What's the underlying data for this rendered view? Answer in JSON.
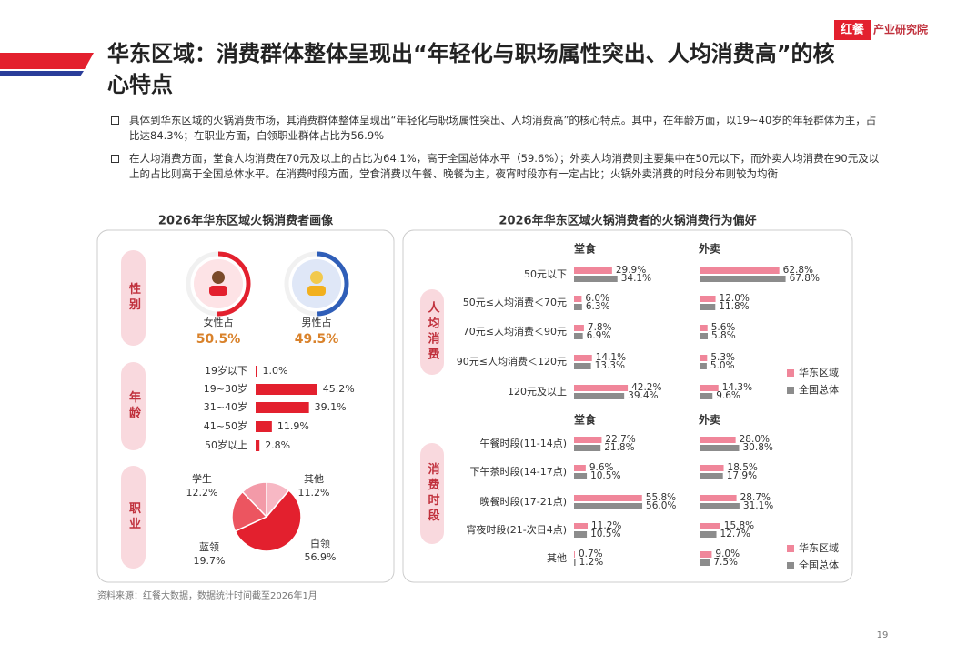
{
  "logo": {
    "brand": "红餐",
    "name": "产业研究院"
  },
  "header": {
    "title": "华东区域：消费群体整体呈现出“年轻化与职场属性突出、人均消费高”的核心特点"
  },
  "bullets": [
    "具体到华东区域的火锅消费市场，其消费群体整体呈现出“年轻化与职场属性突出、人均消费高”的核心特点。其中，在年龄方面，以19~40岁的年轻群体为主，占比达84.3%；在职业方面，白领职业群体占比为56.9%",
    "在人均消费方面，堂食人均消费在70元及以上的占比为64.1%，高于全国总体水平（59.6%）；外卖人均消费则主要集中在50元以下，而外卖人均消费在90元及以上的占比则高于全国总体水平。在消费时段方面，堂食消费以午餐、晚餐为主，夜宵时段亦有一定占比；火锅外卖消费的时段分布则较为均衡"
  ],
  "panels": [
    {
      "title": "2026年华东区域火锅消费者画像"
    },
    {
      "title": "2026年华东区域火锅消费者的火锅消费行为偏好"
    }
  ],
  "chart_data": [
    {
      "type": "ring",
      "label": "性别",
      "categories": [
        "女性占",
        "男性占"
      ],
      "values": [
        50.5,
        49.5
      ],
      "value_labels": [
        "50.5%",
        "49.5%"
      ],
      "colors": [
        "#e3202e",
        "#2f5eb8"
      ]
    },
    {
      "type": "hbar",
      "label": "年龄",
      "categories": [
        "19岁以下",
        "19~30岁",
        "31~40岁",
        "41~50岁",
        "50岁以上"
      ],
      "values": [
        1.0,
        45.2,
        39.1,
        11.9,
        2.8
      ],
      "value_labels": [
        "1.0%",
        "45.2%",
        "39.1%",
        "11.9%",
        "2.8%"
      ],
      "color": "#e3202e"
    },
    {
      "type": "pie",
      "label": "职业",
      "categories": [
        "其他",
        "白领",
        "蓝领",
        "学生"
      ],
      "values": [
        11.2,
        56.9,
        19.7,
        12.2
      ],
      "value_labels": [
        "11.2%",
        "56.9%",
        "19.7%",
        "12.2%"
      ],
      "colors": [
        "#f7b8c4",
        "#e3202e",
        "#ec5560",
        "#f39aa8"
      ]
    },
    {
      "type": "grouped-hbar",
      "label": "人均消费",
      "subtitle": "堂食",
      "categories": [
        "50元以下",
        "50元≤人均消费＜70元",
        "70元≤人均消费＜90元",
        "90元≤人均消费＜120元",
        "120元及以上"
      ],
      "series": [
        {
          "color": "#f0869a",
          "values": [
            29.9,
            6.0,
            7.8,
            14.1,
            42.2
          ],
          "value_labels": [
            "29.9%",
            "6.0%",
            "7.8%",
            "14.1%",
            "42.2%"
          ]
        },
        {
          "color": "#8c8c8c",
          "values": [
            34.1,
            6.3,
            6.9,
            13.3,
            39.4
          ],
          "value_labels": [
            "34.1%",
            "6.3%",
            "6.9%",
            "13.3%",
            "39.4%"
          ]
        }
      ]
    },
    {
      "type": "grouped-hbar",
      "subtitle": "外卖",
      "series": [
        {
          "name": "华东区域",
          "color": "#f0869a",
          "values": [
            62.8,
            12.0,
            5.6,
            5.3,
            14.3
          ],
          "value_labels": [
            "62.8%",
            "12.0%",
            "5.6%",
            "5.3%",
            "14.3%"
          ]
        },
        {
          "name": "全国总体",
          "color": "#8c8c8c",
          "values": [
            67.8,
            11.8,
            5.8,
            5.0,
            9.6
          ],
          "value_labels": [
            "67.8%",
            "11.8%",
            "5.8%",
            "5.0%",
            "9.6%"
          ]
        }
      ]
    },
    {
      "type": "grouped-hbar",
      "label": "消费时段",
      "subtitle": "堂食",
      "categories": [
        "午餐时段(11-14点)",
        "下午茶时段(14-17点)",
        "晚餐时段(17-21点)",
        "宵夜时段(21-次日4点)",
        "其他"
      ],
      "series": [
        {
          "color": "#f0869a",
          "values": [
            22.7,
            9.6,
            55.8,
            11.2,
            0.7
          ],
          "value_labels": [
            "22.7%",
            "9.6%",
            "55.8%",
            "11.2%",
            "0.7%"
          ]
        },
        {
          "color": "#8c8c8c",
          "values": [
            21.8,
            10.5,
            56.0,
            10.5,
            1.2
          ],
          "value_labels": [
            "21.8%",
            "10.5%",
            "56.0%",
            "10.5%",
            "1.2%"
          ]
        }
      ]
    },
    {
      "type": "grouped-hbar",
      "subtitle": "外卖",
      "series": [
        {
          "name": "华东区域",
          "color": "#f0869a",
          "values": [
            28.0,
            18.5,
            28.7,
            15.8,
            9.0
          ],
          "value_labels": [
            "28.0%",
            "18.5%",
            "28.7%",
            "15.8%",
            "9.0%"
          ]
        },
        {
          "name": "全国总体",
          "color": "#8c8c8c",
          "values": [
            30.8,
            17.9,
            31.1,
            12.7,
            7.5
          ],
          "value_labels": [
            "30.8%",
            "17.9%",
            "31.1%",
            "12.7%",
            "7.5%"
          ]
        }
      ]
    }
  ],
  "source": "资料来源：红餐大数据，数据统计时间截至2026年1月",
  "page_number": "19"
}
